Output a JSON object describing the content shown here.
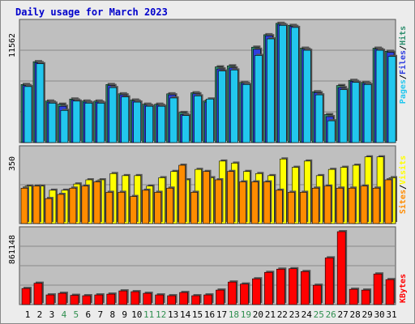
{
  "title": "Daily usage for March 2023",
  "colors": {
    "page_bg": "#ececec",
    "panel_bg": "#bfbfbf",
    "title": "#0000cc",
    "hits": "#2f8f6f",
    "files": "#2f3fe0",
    "pages": "#22c7ee",
    "visits": "#ffff00",
    "sites": "#ff8c00",
    "kbytes": "#ff0000",
    "weekend_label": "#2f8f4f"
  },
  "chart_data": [
    {
      "type": "bar",
      "name": "hits-files-pages",
      "axis_max_label": "11562",
      "ymax": 11562,
      "right_labels": [
        "Pages",
        "/",
        "Files",
        "/",
        "Hits"
      ],
      "legend_order": [
        "pages",
        "files",
        "hits"
      ],
      "categories": [
        "1",
        "2",
        "3",
        "4",
        "5",
        "6",
        "7",
        "8",
        "9",
        "10",
        "11",
        "12",
        "13",
        "14",
        "15",
        "16",
        "17",
        "18",
        "19",
        "20",
        "21",
        "22",
        "23",
        "24",
        "25",
        "26",
        "27",
        "28",
        "29",
        "30",
        "31"
      ],
      "series": [
        {
          "name": "Hits",
          "values": [
            5600,
            7800,
            4000,
            3700,
            4200,
            4000,
            4000,
            5600,
            4700,
            4100,
            3700,
            3700,
            4700,
            2900,
            4800,
            4000,
            7300,
            7400,
            5800,
            9200,
            10400,
            11500,
            11300,
            9100,
            4900,
            2700,
            5500,
            6000,
            5800,
            9100,
            8800
          ]
        },
        {
          "name": "Files",
          "values": [
            5500,
            7700,
            3900,
            3500,
            4100,
            3900,
            3900,
            5500,
            4600,
            4000,
            3600,
            3600,
            4600,
            2700,
            4700,
            3900,
            7100,
            7200,
            5700,
            9000,
            10300,
            11400,
            11200,
            9000,
            4800,
            2500,
            5300,
            5900,
            5700,
            9000,
            8700
          ]
        },
        {
          "name": "Pages",
          "values": [
            5400,
            7600,
            3800,
            3100,
            4000,
            3800,
            3800,
            5300,
            4400,
            3900,
            3500,
            3500,
            4300,
            2600,
            4500,
            4200,
            6900,
            7000,
            5600,
            8400,
            10000,
            11300,
            11100,
            8900,
            4600,
            2100,
            5100,
            5800,
            5600,
            8900,
            8300
          ]
        }
      ]
    },
    {
      "type": "bar",
      "name": "visits-sites",
      "axis_max_label": "350",
      "ymax": 350,
      "right_labels": [
        "Sites",
        "/",
        "Visits"
      ],
      "legend_order": [
        "sites",
        "visits"
      ],
      "categories": [
        "1",
        "2",
        "3",
        "4",
        "5",
        "6",
        "7",
        "8",
        "9",
        "10",
        "11",
        "12",
        "13",
        "14",
        "15",
        "16",
        "17",
        "18",
        "19",
        "20",
        "21",
        "22",
        "23",
        "24",
        "25",
        "26",
        "27",
        "28",
        "29",
        "30",
        "31"
      ],
      "series": [
        {
          "name": "Visits",
          "values": [
            180,
            180,
            160,
            160,
            190,
            210,
            210,
            240,
            230,
            230,
            180,
            220,
            250,
            210,
            260,
            220,
            300,
            290,
            250,
            240,
            230,
            310,
            270,
            300,
            230,
            260,
            270,
            280,
            320,
            320,
            220
          ]
        },
        {
          "name": "Sites",
          "values": [
            170,
            180,
            120,
            140,
            170,
            180,
            200,
            150,
            150,
            130,
            160,
            150,
            170,
            280,
            150,
            250,
            210,
            250,
            200,
            200,
            200,
            160,
            150,
            150,
            170,
            180,
            170,
            170,
            180,
            170,
            210
          ]
        }
      ]
    },
    {
      "type": "bar",
      "name": "kbytes",
      "axis_max_label": "861148",
      "ymax": 861148,
      "right_labels": [
        "KBytes"
      ],
      "legend_order": [
        "kbytes"
      ],
      "categories": [
        "1",
        "2",
        "3",
        "4",
        "5",
        "6",
        "7",
        "8",
        "9",
        "10",
        "11",
        "12",
        "13",
        "14",
        "15",
        "16",
        "17",
        "18",
        "19",
        "20",
        "21",
        "22",
        "23",
        "24",
        "25",
        "26",
        "27",
        "28",
        "29",
        "30",
        "31"
      ],
      "series": [
        {
          "name": "KBytes",
          "values": [
            200000,
            265000,
            120000,
            140000,
            115000,
            110000,
            120000,
            130000,
            170000,
            160000,
            140000,
            120000,
            110000,
            150000,
            110000,
            120000,
            180000,
            280000,
            255000,
            320000,
            400000,
            440000,
            445000,
            410000,
            240000,
            580000,
            905000,
            190000,
            180000,
            380000,
            310000
          ]
        }
      ]
    }
  ],
  "x_labels": {
    "days": [
      "1",
      "2",
      "3",
      "4",
      "5",
      "6",
      "7",
      "8",
      "9",
      "10",
      "11",
      "12",
      "13",
      "14",
      "15",
      "16",
      "17",
      "18",
      "19",
      "20",
      "21",
      "22",
      "23",
      "24",
      "25",
      "26",
      "27",
      "28",
      "29",
      "30",
      "31"
    ],
    "weekend_days": [
      4,
      5,
      11,
      12,
      18,
      19,
      25,
      26
    ]
  }
}
